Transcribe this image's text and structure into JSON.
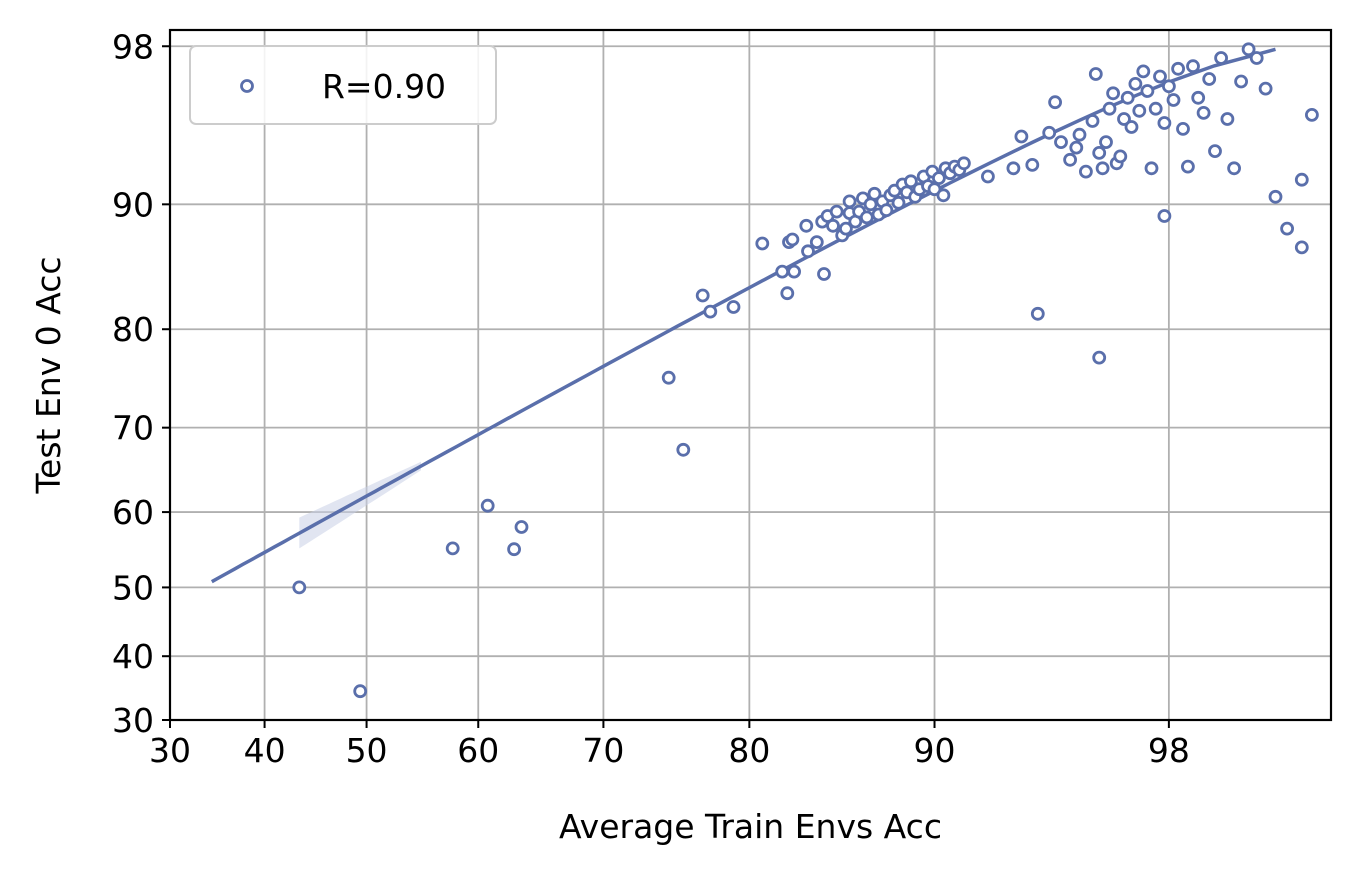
{
  "chart_data": {
    "type": "scatter",
    "xlabel": "Average Train Envs Acc",
    "ylabel": "Test Env 0 Acc",
    "xlim": [
      30,
      100
    ],
    "ylim": [
      30,
      98.5
    ],
    "scale": "transformed (expanded near 100, power-like)",
    "grid": true,
    "xticks": [
      30,
      40,
      50,
      60,
      70,
      80,
      90,
      98
    ],
    "yticks": [
      30,
      40,
      50,
      60,
      70,
      80,
      90,
      98
    ],
    "xtick_labels": [
      "30",
      "40",
      "50",
      "60",
      "70",
      "80",
      "90",
      "98"
    ],
    "ytick_labels": [
      "30",
      "40",
      "50",
      "60",
      "70",
      "80",
      "90",
      "98"
    ],
    "legend": {
      "position": "top-left",
      "entries": [
        "R=0.90"
      ]
    },
    "colors": {
      "marker": "#5a6fab",
      "fit": "#5a6fab",
      "band": "#c9d0e6",
      "grid": "#b0b0b0"
    },
    "fit_line": {
      "x": [
        34.5,
        99.7
      ],
      "y": [
        50.8,
        97.9
      ]
    },
    "fit_band": {
      "x_start": 43.5,
      "x_end": 55,
      "half_width_start": 2.0,
      "half_width_end": 0.5
    },
    "series": [
      {
        "name": "R=0.90",
        "points": [
          [
            43.5,
            50.0
          ],
          [
            49.4,
            34.6
          ],
          [
            57.8,
            55.3
          ],
          [
            60.8,
            60.8
          ],
          [
            63.0,
            55.2
          ],
          [
            63.6,
            58.1
          ],
          [
            74.7,
            75.3
          ],
          [
            75.7,
            67.5
          ],
          [
            77.0,
            83.0
          ],
          [
            77.5,
            81.6
          ],
          [
            79.0,
            82.0
          ],
          [
            80.8,
            87.2
          ],
          [
            82.0,
            85.0
          ],
          [
            82.3,
            83.2
          ],
          [
            82.4,
            87.3
          ],
          [
            82.6,
            87.5
          ],
          [
            82.7,
            85.0
          ],
          [
            83.4,
            88.5
          ],
          [
            83.5,
            86.6
          ],
          [
            84.0,
            87.3
          ],
          [
            84.3,
            88.8
          ],
          [
            84.4,
            84.8
          ],
          [
            84.6,
            89.2
          ],
          [
            84.9,
            88.5
          ],
          [
            85.1,
            89.5
          ],
          [
            85.4,
            87.8
          ],
          [
            85.6,
            88.3
          ],
          [
            85.8,
            89.4
          ],
          [
            85.8,
            90.2
          ],
          [
            86.1,
            88.8
          ],
          [
            86.3,
            89.5
          ],
          [
            86.5,
            90.4
          ],
          [
            86.7,
            89.1
          ],
          [
            86.9,
            90.0
          ],
          [
            87.1,
            90.7
          ],
          [
            87.3,
            89.3
          ],
          [
            87.5,
            90.2
          ],
          [
            87.7,
            89.6
          ],
          [
            87.9,
            90.6
          ],
          [
            88.1,
            90.9
          ],
          [
            88.3,
            90.1
          ],
          [
            88.5,
            91.3
          ],
          [
            88.7,
            90.8
          ],
          [
            88.9,
            91.5
          ],
          [
            89.1,
            90.5
          ],
          [
            89.3,
            91.0
          ],
          [
            89.5,
            91.8
          ],
          [
            89.7,
            91.2
          ],
          [
            89.9,
            92.1
          ],
          [
            90.0,
            91.0
          ],
          [
            90.2,
            91.7
          ],
          [
            90.4,
            90.6
          ],
          [
            90.5,
            92.3
          ],
          [
            90.7,
            92.0
          ],
          [
            90.9,
            92.4
          ],
          [
            91.1,
            92.2
          ],
          [
            91.3,
            92.6
          ],
          [
            92.3,
            91.8
          ],
          [
            93.3,
            92.3
          ],
          [
            93.6,
            94.1
          ],
          [
            94.0,
            92.5
          ],
          [
            94.2,
            81.4
          ],
          [
            94.6,
            94.3
          ],
          [
            94.8,
            95.8
          ],
          [
            95.0,
            93.8
          ],
          [
            95.3,
            92.8
          ],
          [
            95.5,
            93.5
          ],
          [
            95.6,
            94.2
          ],
          [
            95.8,
            92.1
          ],
          [
            96.0,
            94.9
          ],
          [
            96.1,
            97.0
          ],
          [
            96.2,
            93.2
          ],
          [
            96.2,
            77.3
          ],
          [
            96.3,
            92.3
          ],
          [
            96.4,
            93.8
          ],
          [
            96.5,
            95.5
          ],
          [
            96.6,
            96.2
          ],
          [
            96.7,
            92.6
          ],
          [
            96.8,
            93.0
          ],
          [
            96.9,
            95.0
          ],
          [
            97.0,
            96.0
          ],
          [
            97.1,
            94.6
          ],
          [
            97.2,
            96.6
          ],
          [
            97.3,
            95.4
          ],
          [
            97.4,
            97.1
          ],
          [
            97.5,
            96.3
          ],
          [
            97.6,
            92.3
          ],
          [
            97.7,
            95.5
          ],
          [
            97.8,
            96.9
          ],
          [
            97.9,
            94.8
          ],
          [
            97.9,
            89.2
          ],
          [
            98.0,
            96.5
          ],
          [
            98.1,
            95.9
          ],
          [
            98.2,
            97.2
          ],
          [
            98.3,
            94.5
          ],
          [
            98.4,
            92.4
          ],
          [
            98.5,
            97.3
          ],
          [
            98.6,
            96.0
          ],
          [
            98.7,
            95.3
          ],
          [
            98.8,
            96.8
          ],
          [
            98.9,
            93.3
          ],
          [
            99.0,
            97.6
          ],
          [
            99.1,
            95.0
          ],
          [
            99.2,
            92.3
          ],
          [
            99.3,
            96.7
          ],
          [
            99.4,
            97.9
          ],
          [
            99.5,
            97.6
          ],
          [
            99.6,
            96.4
          ],
          [
            99.7,
            90.5
          ],
          [
            99.8,
            88.3
          ],
          [
            99.9,
            86.9
          ],
          [
            99.9,
            91.6
          ],
          [
            99.95,
            95.2
          ]
        ]
      }
    ]
  }
}
